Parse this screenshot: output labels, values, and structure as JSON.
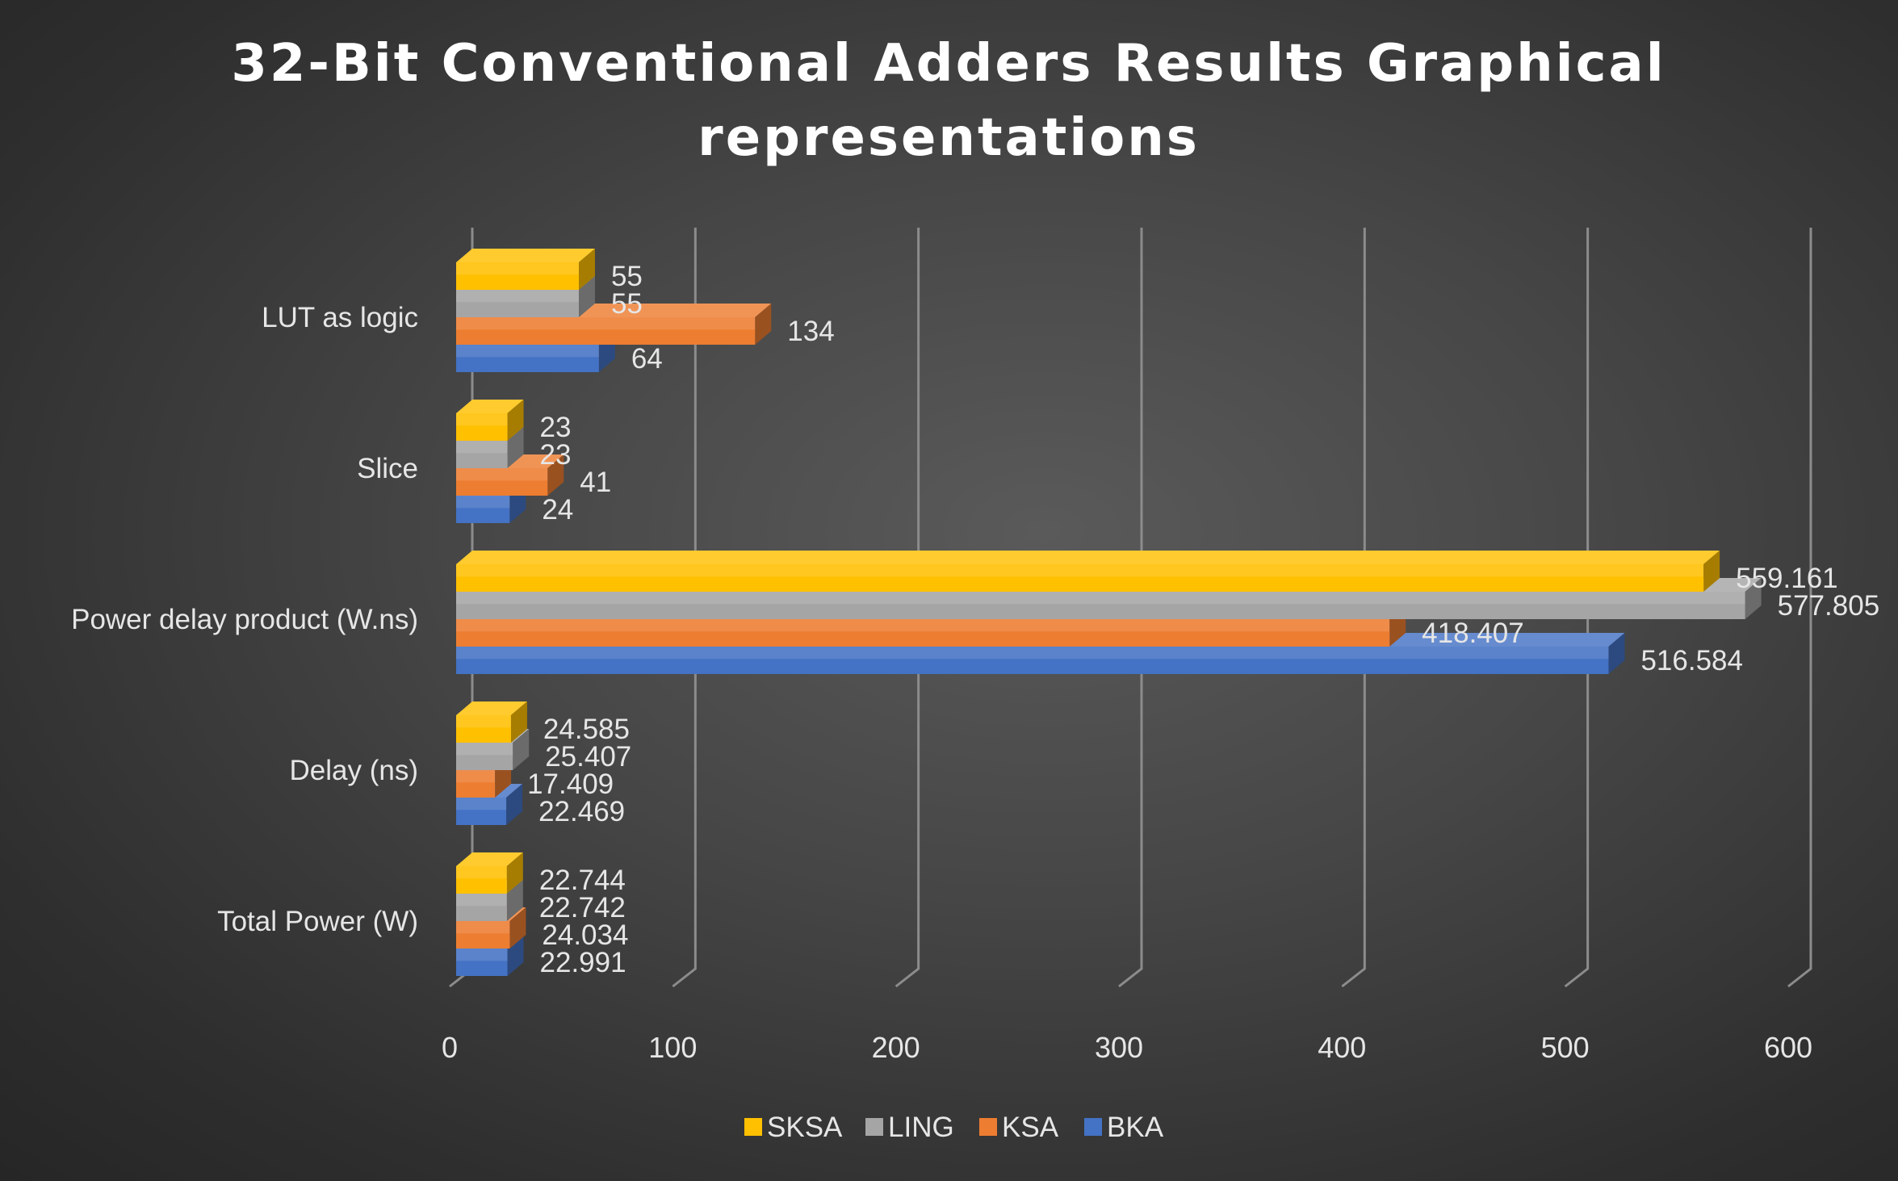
{
  "chart_data": {
    "type": "bar",
    "orientation": "horizontal",
    "title": "32-Bit Conventional Adders Results Graphical representations",
    "title_lines": [
      "32-Bit Conventional Adders Results Graphical",
      "representations"
    ],
    "categories": [
      "LUT as logic",
      "Slice",
      "Power delay product (W.ns)",
      "Delay (ns)",
      "Total Power (W)"
    ],
    "series": [
      {
        "name": "SKSA",
        "color": "#FFC000",
        "values": [
          55,
          23,
          559.161,
          24.585,
          22.744
        ],
        "labels": [
          "55",
          "23",
          "559.161",
          "24.585",
          "22.744"
        ]
      },
      {
        "name": "LING",
        "color": "#A5A5A5",
        "values": [
          55,
          23,
          577.805,
          25.407,
          22.742
        ],
        "labels": [
          "55",
          "23",
          "577.805",
          "25.407",
          "22.742"
        ]
      },
      {
        "name": "KSA",
        "color": "#ED7D31",
        "values": [
          134,
          41,
          418.407,
          17.409,
          24.034
        ],
        "labels": [
          "134",
          "41",
          "418.407",
          "17.409",
          "24.034"
        ]
      },
      {
        "name": "BKA",
        "color": "#4472C4",
        "values": [
          64,
          24,
          516.584,
          22.469,
          22.991
        ],
        "labels": [
          "64",
          "24",
          "516.584",
          "22.469",
          "22.991"
        ]
      }
    ],
    "xlim": [
      0,
      600
    ],
    "xticks": [
      "0",
      "100",
      "200",
      "300",
      "400",
      "500",
      "600"
    ],
    "grid": true,
    "legend_position": "bottom",
    "legend_order": [
      "SKSA",
      "LING",
      "KSA",
      "BKA"
    ],
    "style": "3d-clustered"
  }
}
